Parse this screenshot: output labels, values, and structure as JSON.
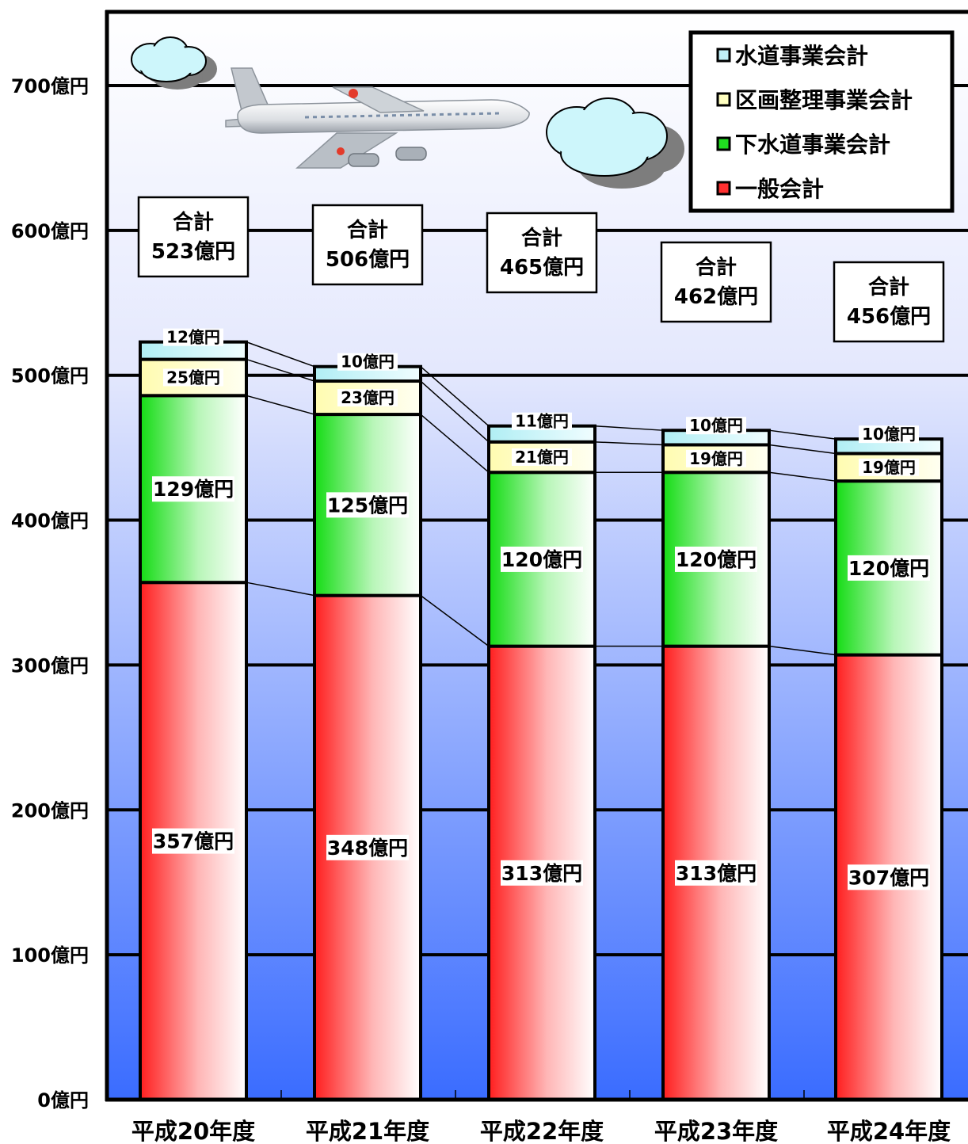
{
  "chart_data": {
    "type": "bar",
    "stacked": true,
    "categories": [
      "平成20年度",
      "平成21年度",
      "平成22年度",
      "平成23年度",
      "平成24年度"
    ],
    "series": [
      {
        "name": "一般会計",
        "values": [
          357,
          348,
          313,
          313,
          307
        ],
        "labels": [
          "357億円",
          "348億円",
          "313億円",
          "313億円",
          "307億円"
        ],
        "color": "#ff2020"
      },
      {
        "name": "下水道事業会計",
        "values": [
          129,
          125,
          120,
          120,
          120
        ],
        "labels": [
          "129億円",
          "125億円",
          "120億円",
          "120億円",
          "120億円"
        ],
        "color": "#19e019"
      },
      {
        "name": "区画整理事業会計",
        "values": [
          25,
          23,
          21,
          19,
          19
        ],
        "labels": [
          "25億円",
          "23億円",
          "21億円",
          "19億円",
          "19億円"
        ],
        "color": "#ffffc0"
      },
      {
        "name": "水道事業会計",
        "values": [
          12,
          10,
          11,
          10,
          10
        ],
        "labels": [
          "12億円",
          "10億円",
          "11億円",
          "10億円",
          "10億円"
        ],
        "color": "#c8f4f8"
      }
    ],
    "totals": {
      "heading": "合計",
      "values": [
        523,
        506,
        465,
        462,
        456
      ],
      "labels": [
        "523億円",
        "506億円",
        "465億円",
        "462億円",
        "456億円"
      ]
    },
    "yticks": [
      0,
      100,
      200,
      300,
      400,
      500,
      600,
      700
    ],
    "ytick_labels": [
      "0億円",
      "100億円",
      "200億円",
      "300億円",
      "400億円",
      "500億円",
      "600億円",
      "700億円"
    ],
    "ylim": [
      0,
      750
    ],
    "legend_order": [
      "水道事業会計",
      "区画整理事業会計",
      "下水道事業会計",
      "一般会計"
    ],
    "legend_position": "top-right",
    "grid": true,
    "decorations": [
      "airplane",
      "cloud",
      "cloud"
    ]
  }
}
